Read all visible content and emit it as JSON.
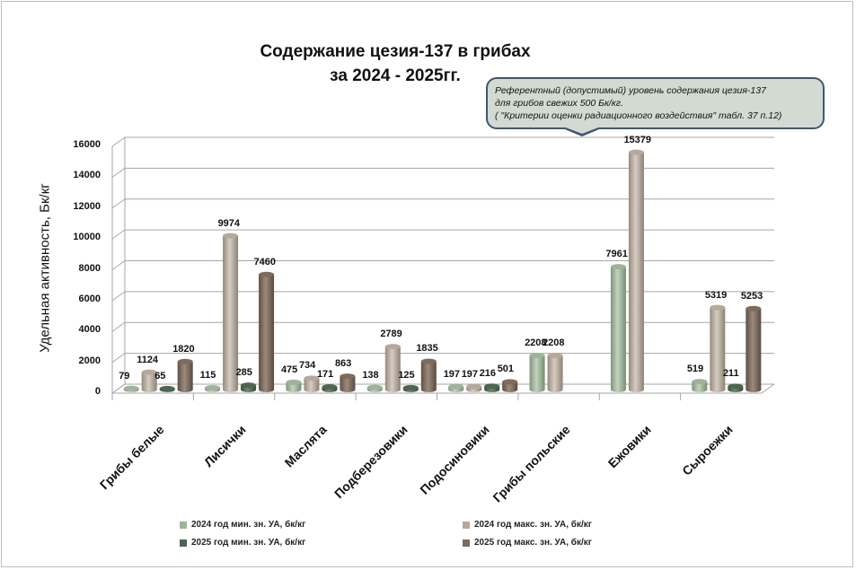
{
  "chart_data": {
    "type": "bar",
    "title": "Содержание цезия-137 в грибах за 2024 - 2025гг.",
    "title_lines": [
      "Содержание цезия-137 в грибах",
      "за 2024 - 2025гг."
    ],
    "xlabel": "",
    "ylabel": "Удельная активность, Бк/кг",
    "ylim": [
      0,
      16000
    ],
    "yticks": [
      "0",
      "2000",
      "4000",
      "6000",
      "8000",
      "10000",
      "12000",
      "14000",
      "16000"
    ],
    "grid": true,
    "style": "3d-cylinder",
    "legend_position": "bottom",
    "categories": [
      "Грибы белые",
      "Лисички",
      "Маслята",
      "Подберезовики",
      "Подосиновики",
      "Грибы польские",
      "Ежовики",
      "Сыроежки"
    ],
    "series": [
      {
        "name": "2024 год мин. зн. УА, бк/кг",
        "color": "#9fb39a",
        "values": [
          79,
          115,
          475,
          138,
          197,
          2208,
          7961,
          519
        ]
      },
      {
        "name": "2024 год макс.  зн. УА, бк/кг",
        "color": "#b5a99c",
        "values": [
          1124,
          9974,
          734,
          2789,
          197,
          2208,
          15379,
          5319
        ]
      },
      {
        "name": "2025 год мин. зн. УА, бк/кг",
        "color": "#4e6650",
        "values": [
          65,
          285,
          171,
          125,
          216,
          null,
          null,
          211
        ]
      },
      {
        "name": "2025 год макс.  зн. УА, бк/кг",
        "color": "#7d6c5e",
        "values": [
          1820,
          7460,
          863,
          1835,
          501,
          null,
          null,
          5253
        ]
      }
    ],
    "annotation": {
      "lines": [
        "Референтный (допустимый) уровень содержания цезия-137",
        "для грибов  свежих  500 Бк/кг.",
        "( \"Критерии оценки радиационного воздействия\"  табл. 37 п.12)"
      ]
    }
  }
}
